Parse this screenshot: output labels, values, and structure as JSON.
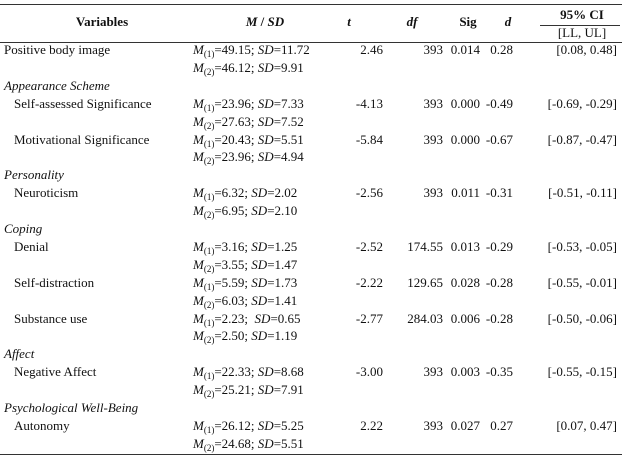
{
  "header": {
    "variables": "Variables",
    "msd": [
      "M",
      " / ",
      "SD"
    ],
    "t": "t",
    "df": "df",
    "sig": "Sig",
    "d": "d",
    "ci": "95% CI",
    "ci_sub": "[LL, UL]"
  },
  "rows": [
    {
      "label": "Positive body image",
      "msd": [
        [
          "M",
          "(1)",
          "=49.15; ",
          "SD",
          "=11.72"
        ],
        [
          "M",
          "(2)",
          "=46.12; ",
          "SD",
          "=9.91"
        ]
      ],
      "t": "2.46",
      "df": "393",
      "sig": "0.014",
      "d": "0.28",
      "ci": "[0.08, 0.48]"
    },
    {
      "section": "Appearance Scheme"
    },
    {
      "label": "Self-assessed Significance",
      "msd": [
        [
          "M",
          "(1)",
          "=23.96; ",
          "SD",
          "=7.33"
        ],
        [
          "M",
          "(2)",
          "=27.63; ",
          "SD",
          "=7.52"
        ]
      ],
      "t": "-4.13",
      "df": "393",
      "sig": "0.000",
      "d": "-0.49",
      "ci": "[-0.69, -0.29]"
    },
    {
      "label": "Motivational Significance",
      "msd": [
        [
          "M",
          "(1)",
          "=20.43; ",
          "SD",
          "=5.51"
        ],
        [
          "M",
          "(2)",
          "=23.96; ",
          "SD",
          "=4.94"
        ]
      ],
      "t": "-5.84",
      "df": "393",
      "sig": "0.000",
      "d": "-0.67",
      "ci": "[-0.87, -0.47]"
    },
    {
      "section": "Personality"
    },
    {
      "label": "Neuroticism",
      "msd": [
        [
          "M",
          "(1)",
          "=6.32; ",
          "SD",
          "=2.02"
        ],
        [
          "M",
          "(2)",
          "=6.95; ",
          "SD",
          "=2.10"
        ]
      ],
      "t": "-2.56",
      "df": "393",
      "sig": "0.011",
      "d": "-0.31",
      "ci": "[-0.51, -0.11]"
    },
    {
      "section": "Coping"
    },
    {
      "label": "Denial",
      "msd": [
        [
          "M",
          "(1)",
          "=3.16; ",
          "SD",
          "=1.25"
        ],
        [
          "M",
          "(2)",
          "=3.55; ",
          "SD",
          "=1.47"
        ]
      ],
      "t": "-2.52",
      "df": "174.55",
      "sig": "0.013",
      "d": "-0.29",
      "ci": "[-0.53, -0.05]"
    },
    {
      "label": "Self-distraction",
      "msd": [
        [
          "M",
          "(1)",
          "=5.59; ",
          "SD",
          "=1.73"
        ],
        [
          "M",
          "(2)",
          "=6.03; ",
          "SD",
          "=1.41"
        ]
      ],
      "t": "-2.22",
      "df": "129.65",
      "sig": "0.028",
      "d": "-0.28",
      "ci": "[-0.55, -0.01]"
    },
    {
      "label": "Substance use",
      "msd": [
        [
          "M",
          "(1)",
          "=2.23;  ",
          "SD",
          "=0.65"
        ],
        [
          "M",
          "(2)",
          "=2.50; ",
          "SD",
          "=1.19"
        ]
      ],
      "t": "-2.77",
      "df": "284.03",
      "sig": "0.006",
      "d": "-0.28",
      "ci": "[-0.50, -0.06]"
    },
    {
      "section": "Affect"
    },
    {
      "label": "Negative Affect",
      "msd": [
        [
          "M",
          "(1)",
          "=22.33; ",
          "SD",
          "=8.68"
        ],
        [
          "M",
          "(2)",
          "=25.21; ",
          "SD",
          "=7.91"
        ]
      ],
      "t": "-3.00",
      "df": "393",
      "sig": "0.003",
      "d": "-0.35",
      "ci": "[-0.55, -0.15]"
    },
    {
      "section": "Psychological Well-Being"
    },
    {
      "label": "Autonomy",
      "msd": [
        [
          "M",
          "(1)",
          "=26.12; ",
          "SD",
          "=5.25"
        ],
        [
          "M",
          "(2)",
          "=24.68; ",
          "SD",
          "=5.51"
        ]
      ],
      "t": "2.22",
      "df": "393",
      "sig": "0.027",
      "d": "0.27",
      "ci": "[0.07, 0.47]"
    }
  ]
}
